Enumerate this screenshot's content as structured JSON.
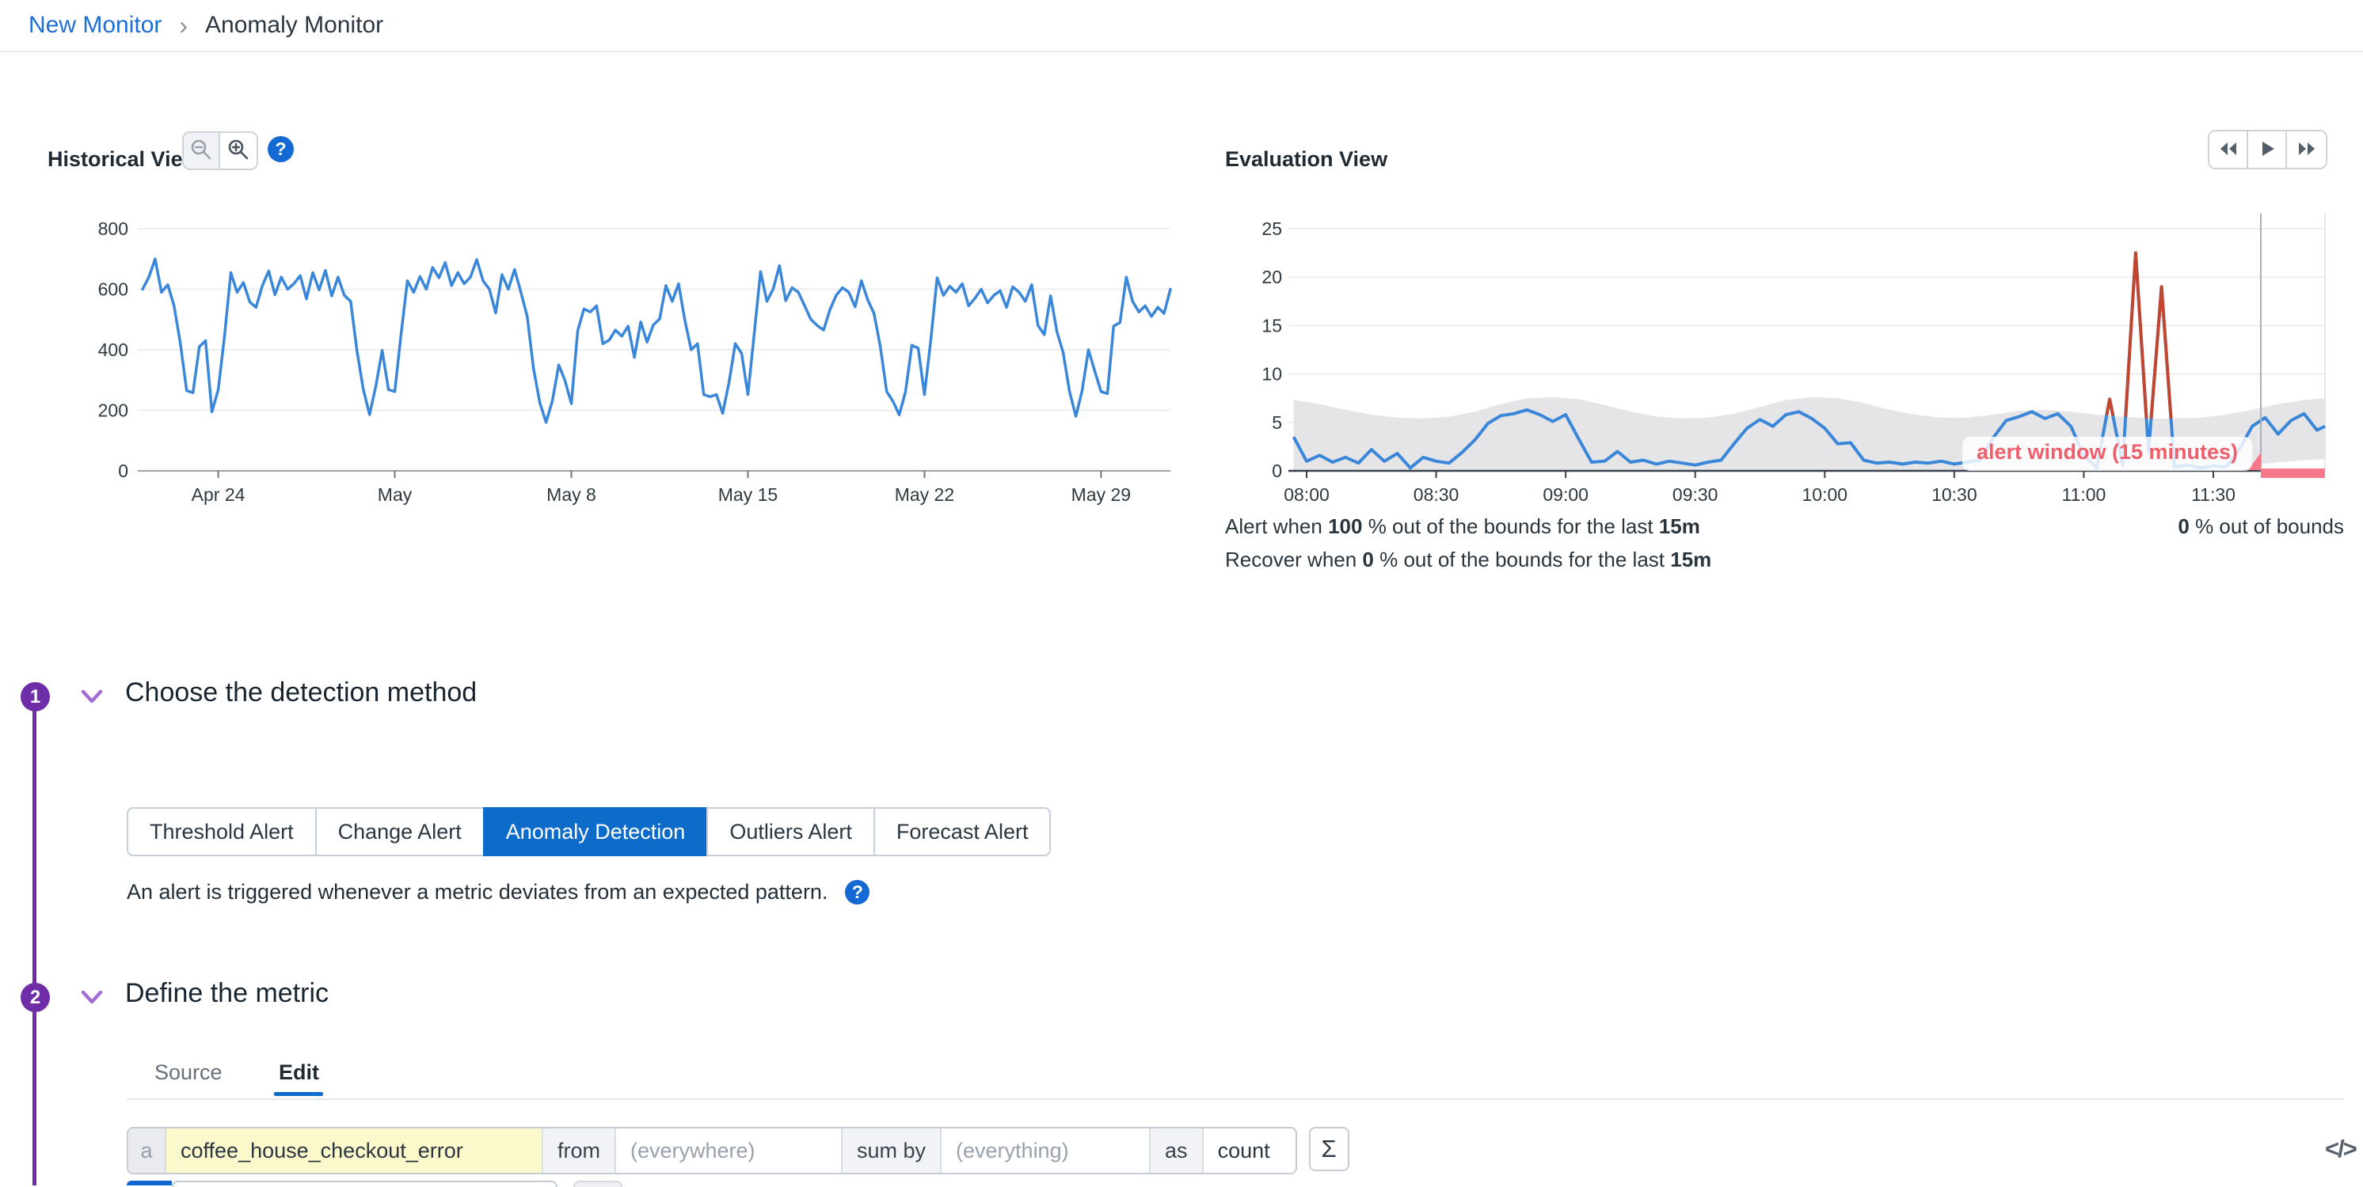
{
  "breadcrumb": {
    "link": "New Monitor",
    "separator": "›",
    "current": "Anomaly Monitor"
  },
  "icons": {
    "question": "?",
    "sigma": "Σ",
    "code": "</>"
  },
  "historical": {
    "title": "Historical View"
  },
  "evaluation": {
    "title": "Evaluation View",
    "alert_line": {
      "t1": "Alert when ",
      "b1": "100",
      "t2": " % out of the bounds for the last ",
      "b2": "15m"
    },
    "recover_line": {
      "t1": "Recover when ",
      "b1": "0",
      "t2": " % out of the bounds for the last ",
      "b2": "15m"
    },
    "out_of_bounds": {
      "b": "0",
      "t": " % out of bounds"
    }
  },
  "sections": {
    "one": {
      "number": "1",
      "title": "Choose the detection method",
      "buttons": [
        "Threshold Alert",
        "Change Alert",
        "Anomaly Detection",
        "Outliers Alert",
        "Forecast Alert"
      ],
      "active_button": "Anomaly Detection",
      "description": "An alert is triggered whenever a metric deviates from an expected pattern."
    },
    "two": {
      "number": "2",
      "title": "Define the metric",
      "tabs": [
        "Source",
        "Edit"
      ],
      "active_tab": "Edit",
      "query": {
        "letter": "a",
        "metric": "coffee_house_checkout_error",
        "from_label": "from",
        "from_value": "(everywhere)",
        "sum_by_label": "sum by",
        "sum_by_value": "(everything)",
        "as_label": "as",
        "aggregation": "count"
      }
    }
  },
  "colors": {
    "accent_purple": "#6f2da8",
    "primary_blue": "#0d6cc9",
    "link_blue": "#1d6fd6",
    "chart_line_blue": "#3a87d9",
    "anomaly_red": "#c0462f",
    "alert_pink": "#ee5f6b",
    "window_pink": "#f5798b",
    "band_gray": "#e5e5e7"
  },
  "chart_data": [
    {
      "type": "line",
      "title": "Historical View",
      "ylabel": "",
      "yticks": [
        0,
        200,
        400,
        600,
        800
      ],
      "ymax": 800,
      "days_span": 40.75,
      "xticks": [
        {
          "label": "Apr 24",
          "day": 3
        },
        {
          "label": "May",
          "day": 10
        },
        {
          "label": "May 8",
          "day": 17
        },
        {
          "label": "May 15",
          "day": 24
        },
        {
          "label": "May 22",
          "day": 31
        },
        {
          "label": "May 29",
          "day": 38
        }
      ],
      "color": "#3a87d9",
      "values": [
        600,
        640,
        700,
        590,
        615,
        545,
        420,
        265,
        258,
        410,
        430,
        195,
        268,
        445,
        655,
        590,
        622,
        558,
        540,
        612,
        660,
        582,
        640,
        600,
        618,
        645,
        568,
        655,
        598,
        662,
        578,
        640,
        580,
        560,
        398,
        270,
        186,
        280,
        398,
        268,
        262,
        452,
        628,
        590,
        642,
        600,
        672,
        638,
        688,
        612,
        655,
        618,
        640,
        698,
        628,
        600,
        522,
        648,
        600,
        665,
        590,
        510,
        338,
        225,
        160,
        232,
        350,
        298,
        222,
        462,
        535,
        525,
        545,
        420,
        432,
        465,
        445,
        478,
        375,
        492,
        425,
        482,
        502,
        612,
        560,
        618,
        498,
        400,
        420,
        252,
        245,
        252,
        190,
        292,
        420,
        388,
        252,
        452,
        658,
        560,
        600,
        678,
        562,
        605,
        590,
        545,
        500,
        480,
        465,
        532,
        580,
        605,
        590,
        542,
        628,
        565,
        520,
        410,
        262,
        230,
        185,
        262,
        415,
        405,
        252,
        432,
        638,
        580,
        610,
        590,
        618,
        545,
        570,
        600,
        555,
        580,
        595,
        540,
        608,
        590,
        560,
        615,
        480,
        450,
        578,
        460,
        390,
        262,
        180,
        265,
        400,
        330,
        262,
        255,
        478,
        490,
        640,
        560,
        525,
        545,
        510,
        540,
        520,
        600
      ]
    },
    {
      "type": "line+band",
      "title": "Evaluation View",
      "yticks": [
        0,
        5,
        10,
        15,
        20,
        25
      ],
      "ymax": 25,
      "start_min": 477,
      "step_min": 3,
      "xticks": [
        {
          "min": 480,
          "label": "08:00"
        },
        {
          "min": 510,
          "label": "08:30"
        },
        {
          "min": 540,
          "label": "09:00"
        },
        {
          "min": 570,
          "label": "09:30"
        },
        {
          "min": 600,
          "label": "10:00"
        },
        {
          "min": 630,
          "label": "10:30"
        },
        {
          "min": 660,
          "label": "11:00"
        },
        {
          "min": 690,
          "label": "11:30"
        }
      ],
      "color": "#3a87d9",
      "anomaly_color": "#c0462f",
      "band_color": "#e5e5e7",
      "window_color": "#f5798b",
      "tooltip": "alert window (15 minutes)",
      "cursor_min": 701,
      "alert_window_min": [
        701,
        716
      ],
      "values": [
        3.5,
        1.0,
        1.6,
        0.9,
        1.4,
        0.8,
        2.2,
        1.0,
        1.8,
        0.3,
        1.4,
        1.0,
        0.8,
        1.9,
        3.2,
        4.9,
        5.7,
        5.9,
        6.3,
        5.8,
        5.1,
        5.8,
        3.3,
        0.9,
        1.0,
        2.0,
        0.9,
        1.1,
        0.7,
        1.0,
        0.8,
        0.6,
        0.9,
        1.1,
        2.8,
        4.4,
        5.3,
        4.6,
        5.8,
        6.1,
        5.4,
        4.4,
        2.8,
        2.9,
        1.1,
        0.8,
        0.9,
        0.7,
        0.9,
        0.8,
        1.0,
        0.7,
        0.9,
        1.1,
        3.4,
        5.2,
        5.6,
        6.1,
        5.4,
        5.9,
        4.6,
        1.6,
        0.3,
        7.4,
        0.6,
        22.5,
        2.0,
        19.0,
        0.4,
        0.6,
        0.3,
        0.5,
        0.4,
        2.2,
        4.6,
        5.5,
        3.8,
        5.2,
        5.9,
        4.2,
        4.6
      ],
      "band": {
        "start_min": 477,
        "step_min": 6,
        "upper": [
          7.3,
          6.9,
          6.3,
          5.8,
          5.5,
          5.4,
          5.6,
          6.1,
          6.9,
          7.5,
          7.6,
          7.4,
          6.8,
          6.1,
          5.6,
          5.4,
          5.5,
          5.9,
          6.6,
          7.3,
          7.6,
          7.5,
          7.0,
          6.3,
          5.8,
          5.5,
          5.5,
          5.8,
          6.2,
          6.3,
          6.1,
          5.8,
          5.6,
          5.4,
          5.4,
          5.5,
          5.8,
          6.3,
          6.9,
          7.3,
          7.5
        ],
        "lower": [
          0,
          0,
          0,
          0,
          0,
          0,
          0,
          0,
          0,
          0,
          0,
          0,
          0,
          0,
          0,
          0,
          0,
          0,
          0,
          0,
          0,
          0,
          0,
          0,
          0,
          0,
          0,
          0,
          0,
          0,
          0,
          0,
          0,
          0,
          0,
          0.1,
          0.3,
          0.6,
          0.9,
          1.1,
          1.2
        ]
      }
    }
  ]
}
